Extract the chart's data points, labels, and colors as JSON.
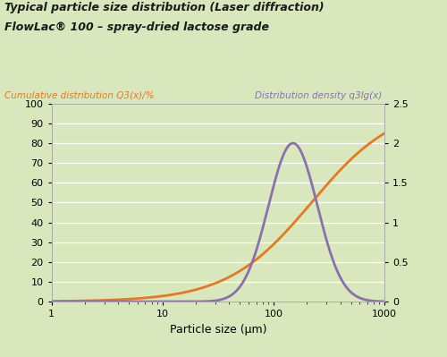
{
  "title1": "Typical particle size distribution (Laser diffraction)",
  "title2": "FlowLac® 100 – spray-dried lactose grade",
  "left_label": "Cumulative distribution Q3(x)/%",
  "right_label": "Distribution density q3lg(x)",
  "xlabel": "Particle size (μm)",
  "background_color": "#d9e8bc",
  "orange_color": "#e87722",
  "purple_color": "#8b6fae",
  "title_color": "#1a1a1a",
  "left_label_color": "#e87722",
  "right_label_color": "#8b6fae",
  "ylim_left": [
    0,
    100
  ],
  "ylim_right": [
    0,
    2.5
  ],
  "xlim_log": [
    1,
    1000
  ],
  "yticks_left": [
    0,
    10,
    20,
    30,
    40,
    50,
    60,
    70,
    80,
    90,
    100
  ],
  "yticks_right": [
    0,
    0.5,
    1.0,
    1.5,
    2.0,
    2.5
  ],
  "cum_x50": 220,
  "cum_sigma": 0.38,
  "dens_x50": 150,
  "dens_sigma": 0.22,
  "dens_peak": 2.0
}
